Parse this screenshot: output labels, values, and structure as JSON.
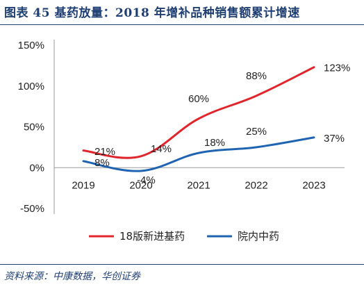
{
  "header": {
    "title": "图表 45   基药放量：2018 年增补品种销售额累计增速"
  },
  "footer": {
    "source": "资料来源：中康数据，华创证券"
  },
  "chart_data": {
    "type": "line",
    "title": "",
    "xlabel": "",
    "ylabel": "",
    "categories": [
      "2019",
      "2020",
      "2021",
      "2022",
      "2023"
    ],
    "y_ticks": [
      "150%",
      "100%",
      "50%",
      "0%",
      "-50%"
    ],
    "y_tick_values": [
      150,
      100,
      50,
      0,
      -50
    ],
    "ylim": [
      -50,
      150
    ],
    "grid": false,
    "legend_position": "bottom",
    "series": [
      {
        "name": "18版新进基药",
        "color": "#e0262d",
        "values": [
          21,
          14,
          60,
          88,
          123
        ],
        "labels": [
          "21%",
          "14%",
          "60%",
          "88%",
          "123%"
        ]
      },
      {
        "name": "院内中药",
        "color": "#1f64b0",
        "values": [
          8,
          -4,
          18,
          25,
          37
        ],
        "labels": [
          "8%",
          "-4%",
          "18%",
          "25%",
          "37%"
        ]
      }
    ]
  }
}
